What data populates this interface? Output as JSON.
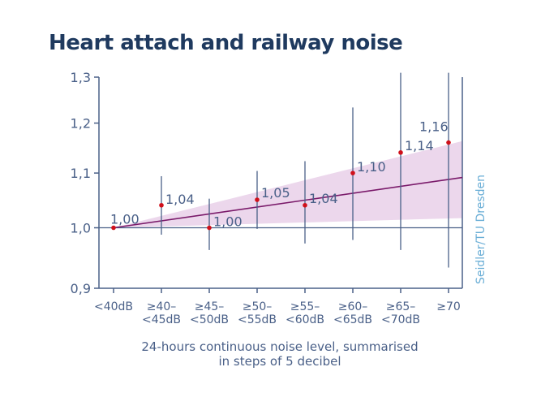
{
  "title": "Heart attach and railway noise",
  "colors": {
    "title": "#1f3a5f",
    "axis": "#4a6088",
    "text": "#4a6088",
    "point": "#d0101a",
    "trend": "#7a1a6a",
    "band": "#ecd7ec",
    "credit": "#6aaed6"
  },
  "chart_data": {
    "type": "scatter",
    "title": "Heart attach and railway noise",
    "xlabel_lines": [
      "24-hours continuous noise level, summarised",
      "in steps of 5 decibel"
    ],
    "ylabel": "",
    "y_scale": "log",
    "ylim": [
      0.9,
      1.3
    ],
    "y_ticks": [
      0.9,
      1.0,
      1.1,
      1.2,
      1.3
    ],
    "y_tick_labels": [
      "0,9",
      "1,0",
      "1,1",
      "1,2",
      "1,3"
    ],
    "reference_line": 1.0,
    "categories": [
      [
        "<40dB"
      ],
      [
        "≥40–",
        "<45dB"
      ],
      [
        "≥45–",
        "<50dB"
      ],
      [
        "≥50–",
        "<55dB"
      ],
      [
        "≥55–",
        "<60dB"
      ],
      [
        "≥60–",
        "<65dB"
      ],
      [
        "≥65–",
        "<70dB"
      ],
      [
        "≥70"
      ]
    ],
    "values": [
      1.0,
      1.04,
      1.0,
      1.05,
      1.04,
      1.1,
      1.14,
      1.16
    ],
    "value_labels": [
      "1,00",
      "1,04",
      "1,00",
      "1,05",
      "1,04",
      "1,10",
      "1,14",
      "1,16"
    ],
    "ci_lower": [
      null,
      0.988,
      0.962,
      0.998,
      0.973,
      0.979,
      0.962,
      0.933
    ],
    "ci_upper": [
      null,
      1.094,
      1.052,
      1.104,
      1.123,
      1.233,
      1.31,
      1.31
    ],
    "trend": {
      "start": 1.0,
      "end": 1.088
    },
    "trend_band": {
      "lower_end": 1.017,
      "upper_end": 1.163
    },
    "grid": false,
    "source_credit": "Seidler/TU Dresden"
  }
}
